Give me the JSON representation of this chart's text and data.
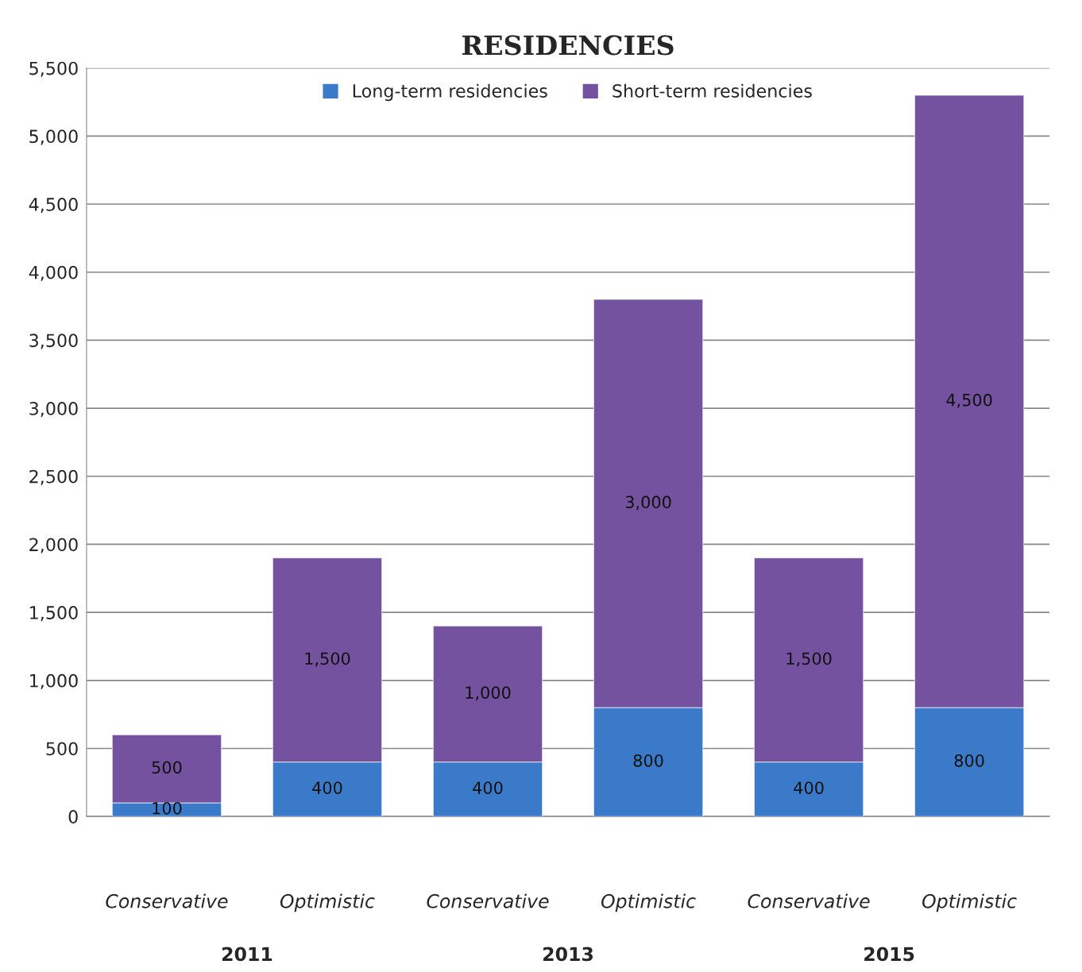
{
  "chart_data": {
    "type": "bar",
    "title": "RESIDENCIES",
    "stacked": true,
    "grid": "y",
    "legend": "top",
    "categories": [
      "Conservative",
      "Optimistic",
      "Conservative",
      "Optimistic",
      "Conservative",
      "Optimistic"
    ],
    "annotations": [
      "2011",
      "2013",
      "2015"
    ],
    "series": [
      {
        "name": "Long-term residencies",
        "color": "#3a7ac8",
        "values": [
          100,
          400,
          400,
          800,
          400,
          800
        ],
        "value_labels": [
          "100",
          "400",
          "400",
          "800",
          "400",
          "800"
        ]
      },
      {
        "name": "Short-term residencies",
        "color": "#7452a0",
        "values": [
          500,
          1500,
          1000,
          3000,
          1500,
          4500
        ],
        "value_labels": [
          "500",
          "1,500",
          "1,000",
          "3,000",
          "1,500",
          "4,500"
        ]
      }
    ],
    "ylim": [
      0,
      5500
    ],
    "yticks": [
      0,
      500,
      {
        "value": 1000,
        "label": "1,000"
      },
      {
        "value": 1500,
        "label": "1,500"
      },
      {
        "value": 2000,
        "label": "2,000"
      },
      {
        "value": 2500,
        "label": "2,500"
      },
      {
        "value": 3000,
        "label": "3,000"
      },
      {
        "value": 3500,
        "label": "3,500"
      },
      {
        "value": 4000,
        "label": "4,000"
      },
      {
        "value": 4500,
        "label": "4,500"
      },
      {
        "value": 5000,
        "label": "5,000"
      },
      {
        "value": 5500,
        "label": "5,500"
      }
    ]
  }
}
